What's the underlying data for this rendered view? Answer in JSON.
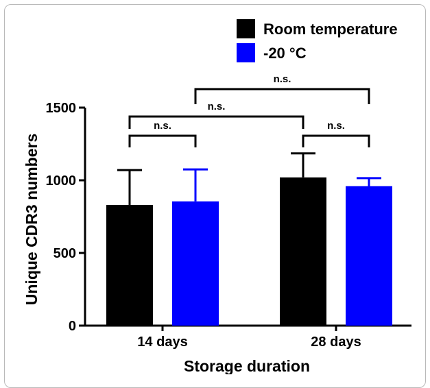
{
  "chart_data": {
    "type": "bar",
    "categories": [
      "14 days",
      "28 days"
    ],
    "series": [
      {
        "name": "Room temperature",
        "color": "#000000",
        "values": [
          830,
          1020
        ],
        "error_upper": [
          1070,
          1185
        ]
      },
      {
        "name": "-20 °C",
        "color": "#0000ff",
        "values": [
          855,
          960
        ],
        "error_upper": [
          1075,
          1015
        ]
      }
    ],
    "xlabel": "Storage duration",
    "ylabel": "Unique CDR3 numbers",
    "ylim": [
      0,
      1500
    ],
    "yticks": [
      0,
      500,
      1000,
      1500
    ],
    "grid": false,
    "legend_position": "top-right",
    "annotations": [
      {
        "label": "n.s.",
        "between": [
          "14 days / Room temperature",
          "14 days / -20 °C"
        ]
      },
      {
        "label": "n.s.",
        "between": [
          "28 days / Room temperature",
          "28 days / -20 °C"
        ]
      },
      {
        "label": "n.s.",
        "between": [
          "14 days / Room temperature",
          "28 days / Room temperature"
        ]
      },
      {
        "label": "n.s.",
        "between": [
          "14 days / -20 °C",
          "28 days / -20 °C"
        ]
      }
    ]
  }
}
